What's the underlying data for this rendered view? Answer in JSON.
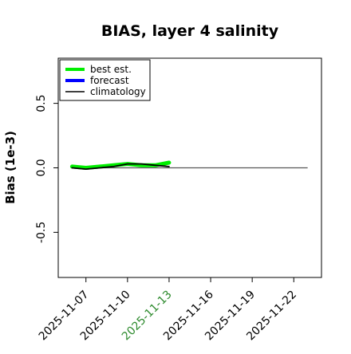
{
  "chart_data": {
    "type": "line",
    "title": "BIAS, layer 4 salinity",
    "xlabel": "",
    "ylabel": "Bias (1e-3)",
    "ylim": [
      -0.85,
      0.85
    ],
    "xlim": [
      "2025-11-05",
      "2025-11-24"
    ],
    "x_ticks": [
      "2025-11-07",
      "2025-11-10",
      "2025-11-13",
      "2025-11-16",
      "2025-11-19",
      "2025-11-22"
    ],
    "x_tick_colors": [
      "#000000",
      "#000000",
      "#2e8b2e",
      "#000000",
      "#000000",
      "#000000"
    ],
    "y_ticks": [
      -0.5,
      0.0,
      0.5
    ],
    "y_tick_labels": [
      "-0.5",
      "0.0",
      "0.5"
    ],
    "grid": false,
    "legend": {
      "placement": "top-left",
      "entries": [
        "best est.",
        "forecast",
        "climatology"
      ]
    },
    "reference_line": {
      "y": 0,
      "x_range": [
        "2025-11-06",
        "2025-11-23"
      ],
      "color": "#555555"
    },
    "series": [
      {
        "name": "best est.",
        "color": "#00ee00",
        "x": [
          "2025-11-06",
          "2025-11-07",
          "2025-11-08",
          "2025-11-09",
          "2025-11-10",
          "2025-11-11",
          "2025-11-12",
          "2025-11-13"
        ],
        "y": [
          0.01,
          0.0,
          0.01,
          0.02,
          0.03,
          0.02,
          0.02,
          0.04
        ]
      },
      {
        "name": "forecast",
        "color": "#0000ff",
        "x": [],
        "y": []
      },
      {
        "name": "climatology",
        "color": "#000000",
        "x": [
          "2025-11-06",
          "2025-11-07",
          "2025-11-08",
          "2025-11-09",
          "2025-11-10",
          "2025-11-11",
          "2025-11-12",
          "2025-11-13"
        ],
        "y": [
          0.0,
          -0.01,
          0.0,
          0.01,
          0.03,
          0.03,
          0.02,
          0.01
        ]
      }
    ]
  }
}
